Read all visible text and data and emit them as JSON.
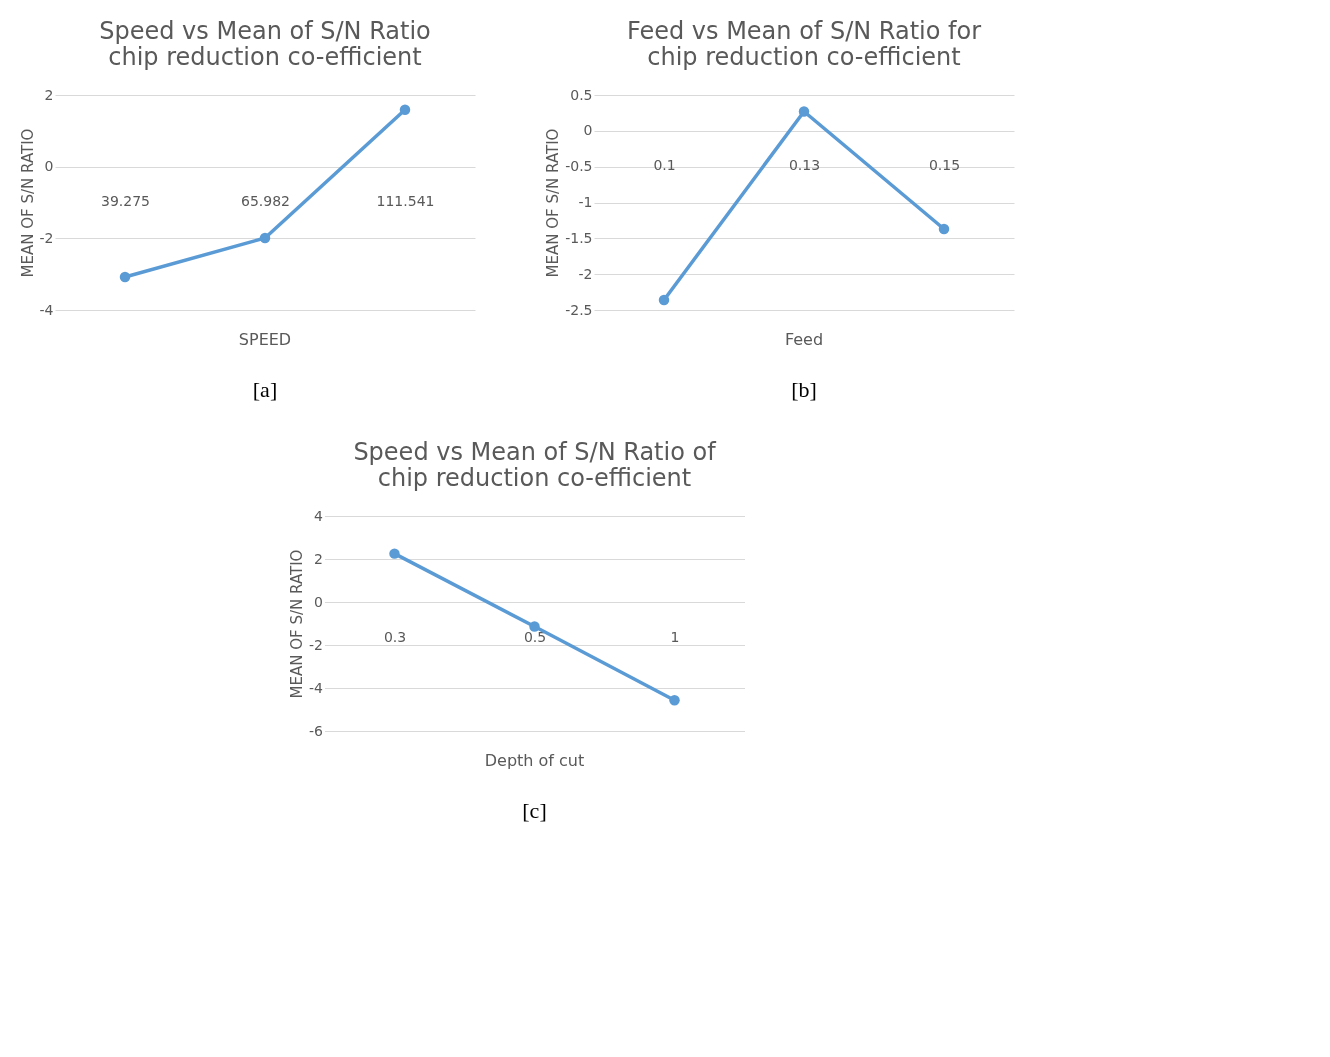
{
  "chart_data": [
    {
      "type": "line",
      "title": "Speed vs Mean of S/N Ratio chip reduction co-efficient",
      "xlabel": "SPEED",
      "ylabel": "MEAN OF S/N RATIO",
      "categories": [
        "39.275",
        "65.982",
        "111.541"
      ],
      "series": [
        {
          "color": "#5b9bd5",
          "values": [
            -3.08,
            -1.99,
            1.59
          ]
        }
      ],
      "ylim": [
        -4,
        2
      ],
      "yticks": [
        -4,
        -2,
        0,
        2
      ],
      "grid": "y",
      "marker": "circle",
      "legend": false,
      "annotations": [
        "[a]"
      ]
    },
    {
      "type": "line",
      "title": "Feed vs Mean of S/N Ratio for chip reduction co-efficient",
      "xlabel": "Feed",
      "ylabel": "MEAN OF S/N RATIO",
      "categories": [
        "0.1",
        "0.13",
        "0.15"
      ],
      "series": [
        {
          "color": "#5b9bd5",
          "values": [
            -2.36,
            0.27,
            -1.37
          ]
        }
      ],
      "ylim": [
        -2.5,
        0.5
      ],
      "yticks": [
        -2.5,
        -2,
        -1.5,
        -1,
        -0.5,
        0,
        0.5
      ],
      "grid": "y",
      "marker": "circle",
      "legend": false,
      "annotations": [
        "[b]"
      ]
    },
    {
      "type": "line",
      "title": "Speed vs Mean of S/N Ratio of chip reduction co-efficient",
      "xlabel": "Depth of cut",
      "ylabel": "MEAN OF S/N RATIO",
      "categories": [
        "0.3",
        "0.5",
        "1"
      ],
      "series": [
        {
          "color": "#5b9bd5",
          "values": [
            2.25,
            -1.14,
            -4.57
          ]
        }
      ],
      "ylim": [
        -6,
        4
      ],
      "yticks": [
        -6,
        -4,
        -2,
        0,
        2,
        4
      ],
      "grid": "y",
      "marker": "circle",
      "legend": false,
      "annotations": [
        "[c]"
      ]
    }
  ]
}
